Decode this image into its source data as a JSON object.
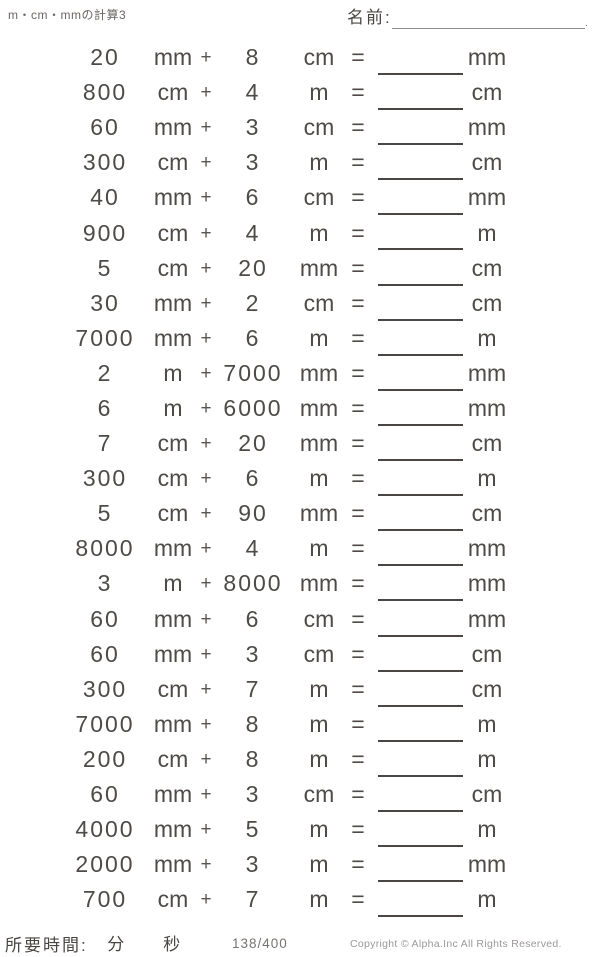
{
  "header": {
    "title": "m・cm・mmの計算3",
    "name_label": "名前:"
  },
  "symbols": {
    "plus": "+",
    "equals": "="
  },
  "problems": [
    {
      "a": "20",
      "ua": "mm",
      "b": "8",
      "ub": "cm",
      "ans_unit": "mm"
    },
    {
      "a": "800",
      "ua": "cm",
      "b": "4",
      "ub": "m",
      "ans_unit": "cm"
    },
    {
      "a": "60",
      "ua": "mm",
      "b": "3",
      "ub": "cm",
      "ans_unit": "mm"
    },
    {
      "a": "300",
      "ua": "cm",
      "b": "3",
      "ub": "m",
      "ans_unit": "cm"
    },
    {
      "a": "40",
      "ua": "mm",
      "b": "6",
      "ub": "cm",
      "ans_unit": "mm"
    },
    {
      "a": "900",
      "ua": "cm",
      "b": "4",
      "ub": "m",
      "ans_unit": "m"
    },
    {
      "a": "5",
      "ua": "cm",
      "b": "20",
      "ub": "mm",
      "ans_unit": "cm"
    },
    {
      "a": "30",
      "ua": "mm",
      "b": "2",
      "ub": "cm",
      "ans_unit": "cm"
    },
    {
      "a": "7000",
      "ua": "mm",
      "b": "6",
      "ub": "m",
      "ans_unit": "m"
    },
    {
      "a": "2",
      "ua": "m",
      "b": "7000",
      "ub": "mm",
      "ans_unit": "mm"
    },
    {
      "a": "6",
      "ua": "m",
      "b": "6000",
      "ub": "mm",
      "ans_unit": "mm"
    },
    {
      "a": "7",
      "ua": "cm",
      "b": "20",
      "ub": "mm",
      "ans_unit": "cm"
    },
    {
      "a": "300",
      "ua": "cm",
      "b": "6",
      "ub": "m",
      "ans_unit": "m"
    },
    {
      "a": "5",
      "ua": "cm",
      "b": "90",
      "ub": "mm",
      "ans_unit": "cm"
    },
    {
      "a": "8000",
      "ua": "mm",
      "b": "4",
      "ub": "m",
      "ans_unit": "mm"
    },
    {
      "a": "3",
      "ua": "m",
      "b": "8000",
      "ub": "mm",
      "ans_unit": "mm"
    },
    {
      "a": "60",
      "ua": "mm",
      "b": "6",
      "ub": "cm",
      "ans_unit": "mm"
    },
    {
      "a": "60",
      "ua": "mm",
      "b": "3",
      "ub": "cm",
      "ans_unit": "cm"
    },
    {
      "a": "300",
      "ua": "cm",
      "b": "7",
      "ub": "m",
      "ans_unit": "cm"
    },
    {
      "a": "7000",
      "ua": "mm",
      "b": "8",
      "ub": "m",
      "ans_unit": "m"
    },
    {
      "a": "200",
      "ua": "cm",
      "b": "8",
      "ub": "m",
      "ans_unit": "m"
    },
    {
      "a": "60",
      "ua": "mm",
      "b": "3",
      "ub": "cm",
      "ans_unit": "cm"
    },
    {
      "a": "4000",
      "ua": "mm",
      "b": "5",
      "ub": "m",
      "ans_unit": "m"
    },
    {
      "a": "2000",
      "ua": "mm",
      "b": "3",
      "ub": "m",
      "ans_unit": "mm"
    },
    {
      "a": "700",
      "ua": "cm",
      "b": "7",
      "ub": "m",
      "ans_unit": "m"
    }
  ],
  "footer": {
    "time_label": "所要時間:",
    "minutes_label": "分",
    "seconds_label": "秒",
    "page": "138/400",
    "copyright": "Copyright © Alpha.Inc All Rights Reserved."
  }
}
